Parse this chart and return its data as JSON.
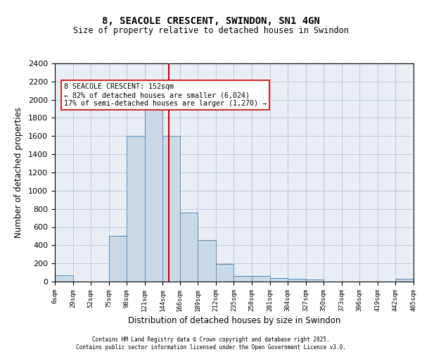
{
  "title": "8, SEACOLE CRESCENT, SWINDON, SN1 4GN",
  "subtitle": "Size of property relative to detached houses in Swindon",
  "xlabel": "Distribution of detached houses by size in Swindon",
  "ylabel": "Number of detached properties",
  "property_size": 152,
  "annotation_line1": "8 SEACOLE CRESCENT: 152sqm",
  "annotation_line2": "← 82% of detached houses are smaller (6,024)",
  "annotation_line3": "17% of semi-detached houses are larger (1,270) →",
  "footer_line1": "Contains HM Land Registry data © Crown copyright and database right 2025.",
  "footer_line2": "Contains public sector information licensed under the Open Government Licence v3.0.",
  "bin_labels": [
    "6sqm",
    "29sqm",
    "52sqm",
    "75sqm",
    "98sqm",
    "121sqm",
    "144sqm",
    "166sqm",
    "189sqm",
    "212sqm",
    "235sqm",
    "258sqm",
    "281sqm",
    "304sqm",
    "327sqm",
    "350sqm",
    "373sqm",
    "396sqm",
    "419sqm",
    "442sqm",
    "465sqm"
  ],
  "bin_edges": [
    6,
    29,
    52,
    75,
    98,
    121,
    144,
    166,
    189,
    212,
    235,
    258,
    281,
    304,
    327,
    350,
    373,
    396,
    419,
    442,
    465
  ],
  "bar_heights": [
    70,
    0,
    0,
    500,
    1600,
    1950,
    1600,
    760,
    460,
    190,
    65,
    60,
    40,
    30,
    20,
    0,
    0,
    0,
    0,
    30,
    0
  ],
  "bar_facecolor": "#c9d9e8",
  "bar_edgecolor": "#5b8db8",
  "vline_x": 152,
  "vline_color": "#cc0000",
  "annotation_box_edgecolor": "#cc0000",
  "annotation_box_facecolor": "white",
  "grid_color": "#c0c8d8",
  "bg_color": "#e8eef4",
  "ylim": [
    0,
    2400
  ],
  "yticks": [
    0,
    200,
    400,
    600,
    800,
    1000,
    1200,
    1400,
    1600,
    1800,
    2000,
    2200,
    2400
  ]
}
